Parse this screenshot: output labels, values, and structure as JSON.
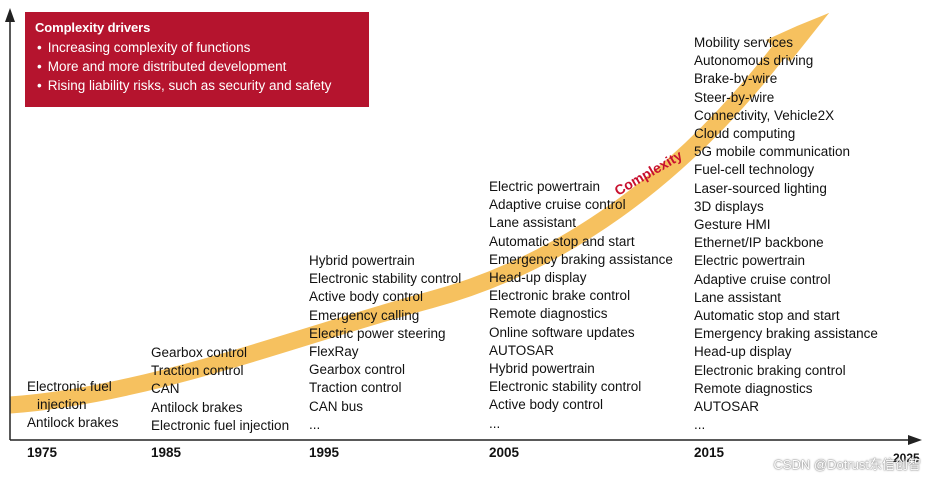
{
  "drivers": {
    "title": "Complexity drivers",
    "items": [
      "Increasing complexity of functions",
      "More and more distributed development",
      "Rising liability risks, such as security and safety"
    ]
  },
  "arrow_label": "Complexity",
  "columns": [
    {
      "year": "1975",
      "items": [
        "Electronic fuel",
        "injection",
        "Antilock brakes"
      ]
    },
    {
      "year": "1985",
      "items": [
        "Gearbox control",
        "Traction control",
        "CAN",
        "Antilock brakes",
        "Electronic fuel injection"
      ]
    },
    {
      "year": "1995",
      "items": [
        "Hybrid powertrain",
        "Electronic stability control",
        "Active body control",
        "Emergency calling",
        "Electric power steering",
        "FlexRay",
        "Gearbox control",
        "Traction control",
        "CAN bus",
        "..."
      ]
    },
    {
      "year": "2005",
      "items": [
        "Electric powertrain",
        "Adaptive cruise control",
        "Lane assistant",
        "Automatic stop and start",
        "Emergency braking assistance",
        "Head-up display",
        "Electronic brake control",
        "Remote diagnostics",
        "Online software updates",
        "AUTOSAR",
        "Hybrid powertrain",
        "Electronic stability control",
        "Active body control",
        "..."
      ]
    },
    {
      "year": "2015",
      "items": [
        "Mobility services",
        "Autonomous driving",
        "Brake-by-wire",
        "Steer-by-wire",
        "Connectivity, Vehicle2X",
        "Cloud computing",
        "5G mobile communication",
        "Fuel-cell technology",
        "Laser-sourced lighting",
        "3D displays",
        "Gesture HMI",
        "Ethernet/IP backbone",
        "Electric powertrain",
        "Adaptive cruise control",
        "Lane assistant",
        "Automatic stop and start",
        "Emergency braking assistance",
        "Head-up display",
        "Electronic braking control",
        "Remote diagnostics",
        "AUTOSAR",
        "..."
      ]
    }
  ],
  "axis_end_label": "2025",
  "watermark": "CSDN @Dotrust东信创智",
  "colors": {
    "drivers_bg": "#b5142e",
    "arrow": "#f6c15f",
    "arrow_text": "#c8102e",
    "axis": "#222222"
  }
}
